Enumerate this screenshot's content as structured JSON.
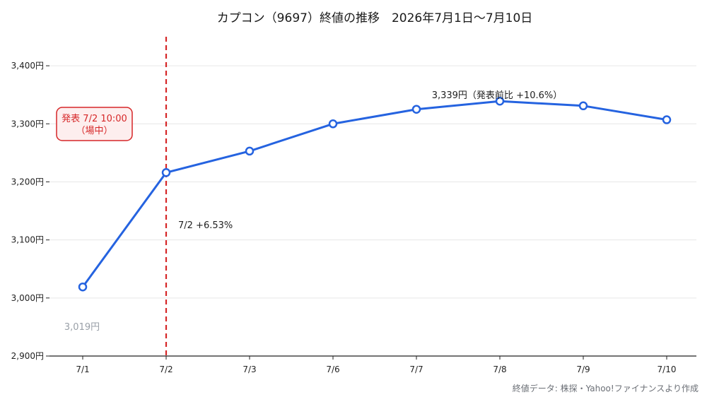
{
  "chart_data": {
    "type": "line",
    "title": "カプコン（9697）終値の推移　2026年7月1日〜7月10日",
    "categories": [
      "7/1",
      "7/2",
      "7/3",
      "7/6",
      "7/7",
      "7/8",
      "7/9",
      "7/10"
    ],
    "series": [
      {
        "values": [
          3019,
          3216,
          3253,
          3300,
          3325,
          3339,
          3331,
          3307
        ]
      }
    ],
    "ylim": [
      2900,
      3450
    ],
    "yticks": [
      2900,
      3000,
      3100,
      3200,
      3300,
      3400
    ],
    "ytick_labels": [
      "2,900円",
      "3,000円",
      "3,100円",
      "3,200円",
      "3,300円",
      "3,400円"
    ],
    "xlabel": "",
    "ylabel": "",
    "grid": "horizontal",
    "line_color": "#2563e0",
    "event_color": "#d62728",
    "event": {
      "category": "7/2",
      "label_line1": "発表 7/2 10:00",
      "label_line2": "（場中）"
    },
    "annotations": {
      "start_value": "3,019円",
      "change_label": "7/2 +6.53%",
      "peak_label": "3,339円（発表前比 +10.6%）"
    },
    "source": "終値データ: 株探・Yahoo!ファイナンスより作成"
  }
}
